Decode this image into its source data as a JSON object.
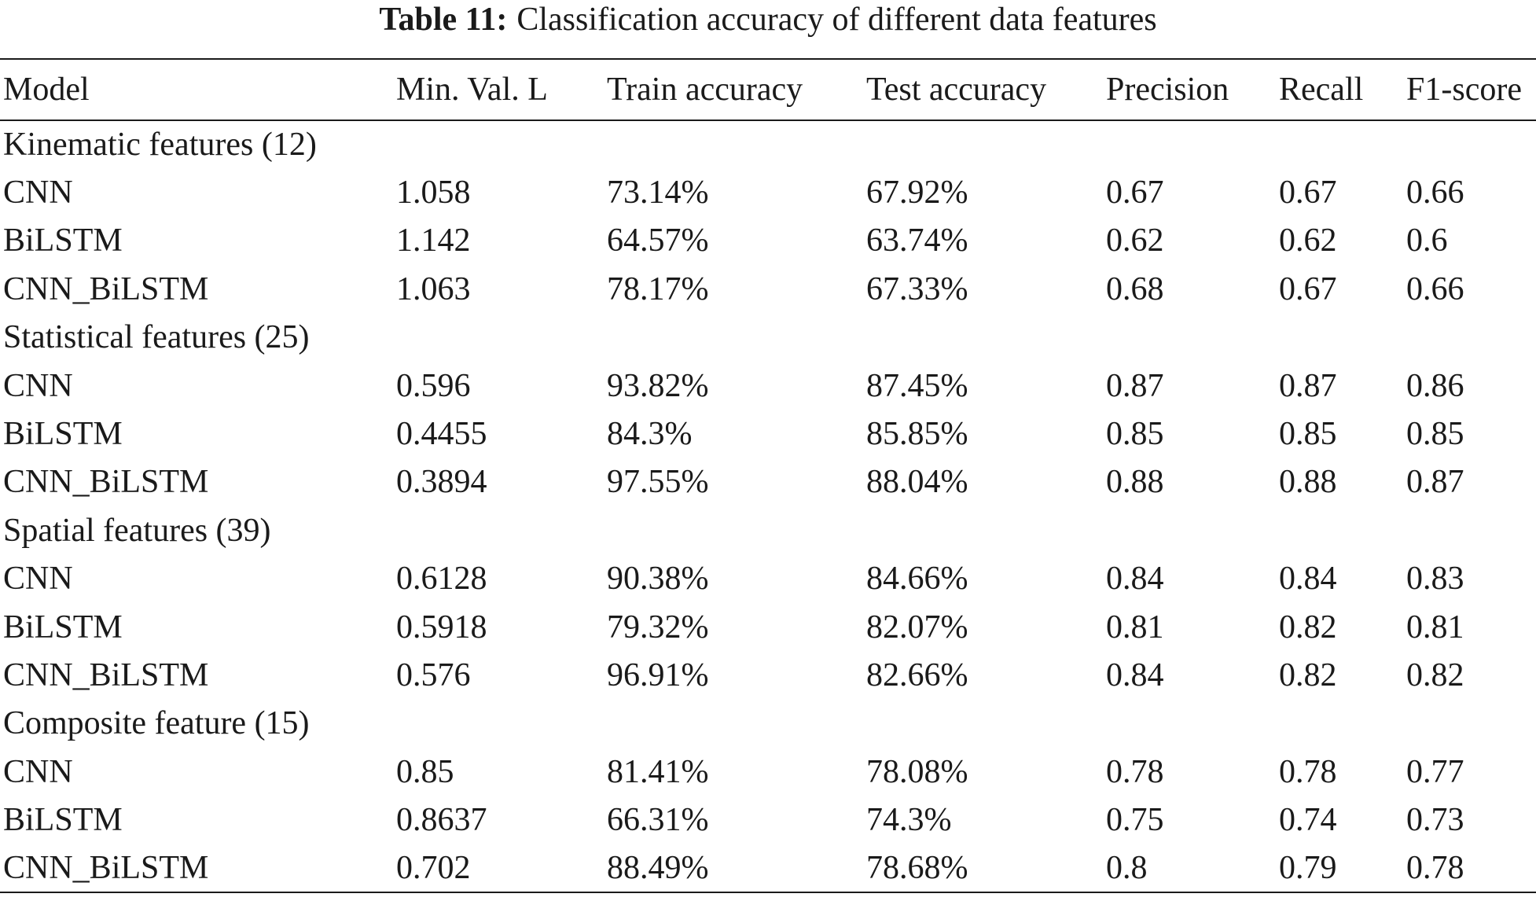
{
  "caption": {
    "label": "Table 11:",
    "text": "Classification accuracy of different data features"
  },
  "table": {
    "headers": [
      "Model",
      "Min. Val. L",
      "Train accuracy",
      "Test accuracy",
      "Precision",
      "Recall",
      "F1-score"
    ],
    "groups": [
      {
        "title": "Kinematic features (12)",
        "rows": [
          [
            "CNN",
            "1.058",
            "73.14%",
            "67.92%",
            "0.67",
            "0.67",
            "0.66"
          ],
          [
            "BiLSTM",
            "1.142",
            "64.57%",
            "63.74%",
            "0.62",
            "0.62",
            "0.6"
          ],
          [
            "CNN_BiLSTM",
            "1.063",
            "78.17%",
            "67.33%",
            "0.68",
            "0.67",
            "0.66"
          ]
        ]
      },
      {
        "title": "Statistical features (25)",
        "rows": [
          [
            "CNN",
            "0.596",
            "93.82%",
            "87.45%",
            "0.87",
            "0.87",
            "0.86"
          ],
          [
            "BiLSTM",
            "0.4455",
            "84.3%",
            "85.85%",
            "0.85",
            "0.85",
            "0.85"
          ],
          [
            "CNN_BiLSTM",
            "0.3894",
            "97.55%",
            "88.04%",
            "0.88",
            "0.88",
            "0.87"
          ]
        ]
      },
      {
        "title": "Spatial features (39)",
        "rows": [
          [
            "CNN",
            "0.6128",
            "90.38%",
            "84.66%",
            "0.84",
            "0.84",
            "0.83"
          ],
          [
            "BiLSTM",
            "0.5918",
            "79.32%",
            "82.07%",
            "0.81",
            "0.82",
            "0.81"
          ],
          [
            "CNN_BiLSTM",
            "0.576",
            "96.91%",
            "82.66%",
            "0.84",
            "0.82",
            "0.82"
          ]
        ]
      },
      {
        "title": "Composite feature (15)",
        "rows": [
          [
            "CNN",
            "0.85",
            "81.41%",
            "78.08%",
            "0.78",
            "0.78",
            "0.77"
          ],
          [
            "BiLSTM",
            "0.8637",
            "66.31%",
            "74.3%",
            "0.75",
            "0.74",
            "0.73"
          ],
          [
            "CNN_BiLSTM",
            "0.702",
            "88.49%",
            "78.68%",
            "0.8",
            "0.79",
            "0.78"
          ]
        ]
      }
    ]
  }
}
